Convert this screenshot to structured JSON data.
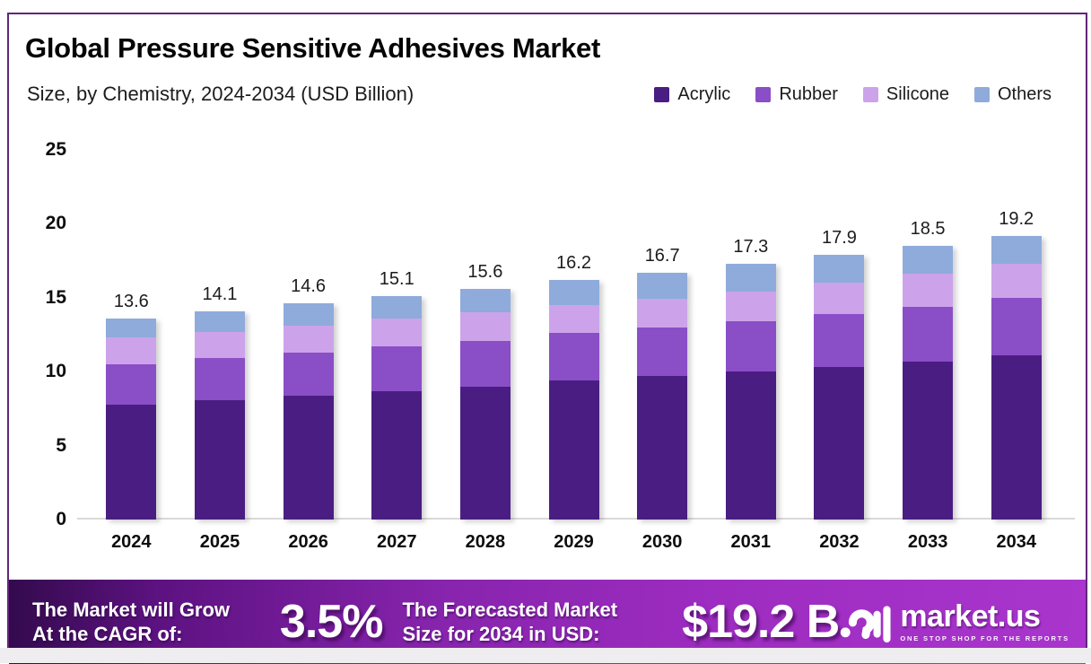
{
  "header": {
    "title": "Global Pressure Sensitive Adhesives Market",
    "subtitle": "Size, by Chemistry, 2024-2034 (USD Billion)"
  },
  "chart_data": {
    "type": "bar",
    "stacked": true,
    "title": "Global Pressure Sensitive Adhesives Market",
    "subtitle": "Size, by Chemistry, 2024-2034 (USD Billion)",
    "unit": "USD Billion",
    "categories": [
      "2024",
      "2025",
      "2026",
      "2027",
      "2028",
      "2029",
      "2030",
      "2031",
      "2032",
      "2033",
      "2034"
    ],
    "series": [
      {
        "name": "Acrylic",
        "color": "#4a1d82",
        "values": [
          7.8,
          8.1,
          8.4,
          8.7,
          9.0,
          9.4,
          9.7,
          10.0,
          10.3,
          10.7,
          11.1
        ]
      },
      {
        "name": "Rubber",
        "color": "#8a4ec6",
        "values": [
          2.7,
          2.8,
          2.9,
          3.0,
          3.1,
          3.2,
          3.3,
          3.4,
          3.6,
          3.7,
          3.9
        ]
      },
      {
        "name": "Silicone",
        "color": "#cca3ea",
        "values": [
          1.8,
          1.8,
          1.8,
          1.9,
          1.9,
          1.9,
          1.9,
          2.0,
          2.1,
          2.2,
          2.3
        ]
      },
      {
        "name": "Others",
        "color": "#8eabdb",
        "values": [
          1.3,
          1.4,
          1.5,
          1.5,
          1.6,
          1.7,
          1.8,
          1.9,
          1.9,
          1.9,
          1.9
        ]
      }
    ],
    "totals": [
      "13.6",
      "14.1",
      "14.6",
      "15.1",
      "15.6",
      "16.2",
      "16.7",
      "17.3",
      "17.9",
      "18.5",
      "19.2"
    ],
    "y_ticks": [
      0,
      5,
      10,
      15,
      20,
      25
    ],
    "ylim": [
      0,
      25
    ],
    "grid": false,
    "legend_position": "top-right"
  },
  "banner": {
    "cagr_label_line1": "The Market will Grow",
    "cagr_label_line2": "At the CAGR of:",
    "cagr_value": "3.5%",
    "forecast_label_line1": "The Forecasted Market",
    "forecast_label_line2": "Size for 2034 in USD:",
    "forecast_value": "$19.2 B",
    "brand_name": "market.us",
    "brand_tagline": "ONE STOP SHOP FOR THE REPORTS"
  },
  "colors": {
    "frame_border": "#63257a",
    "axis_line": "#d9d9d9",
    "banner_gradient_start": "#330a4d",
    "banner_gradient_mid": "#8724ad",
    "banner_gradient_end": "#a935cd",
    "acrylic": "#4a1d82",
    "rubber": "#8a4ec6",
    "silicone": "#cca3ea",
    "others": "#8eabdb"
  }
}
